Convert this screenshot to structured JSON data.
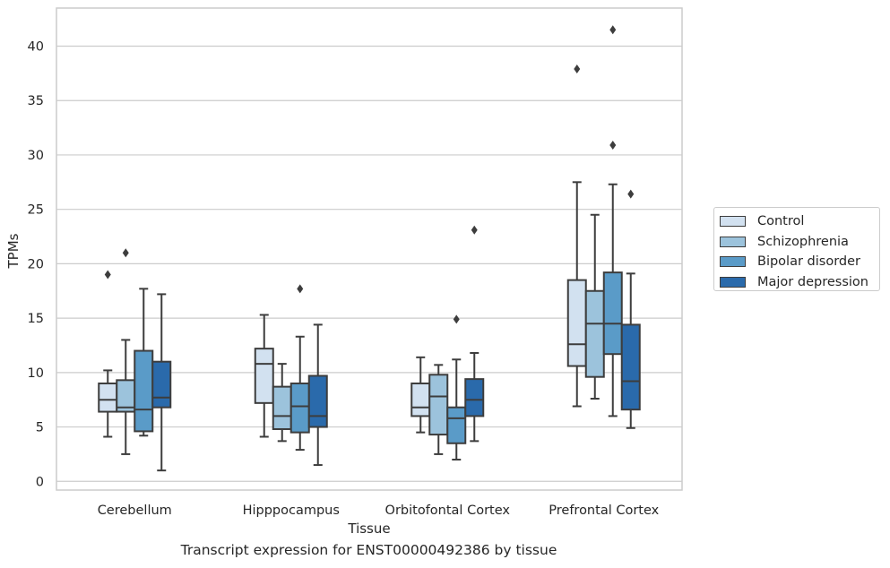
{
  "chart_data": {
    "type": "box",
    "title": "Transcript expression for ENST00000492386 by tissue",
    "xlabel": "Tissue",
    "ylabel": "TPMs",
    "ylim": [
      -0.8,
      43.5
    ],
    "yticks": [
      0,
      5,
      10,
      15,
      20,
      25,
      30,
      35,
      40
    ],
    "grid": "horizontal",
    "legend_position": "right",
    "categories": [
      "Cerebellum",
      "Hipppocampus",
      "Orbitofontal Cortex",
      "Prefrontal Cortex"
    ],
    "series": [
      {
        "name": "Control",
        "color": "#d2e1f0",
        "boxes": [
          {
            "whislo": 4.1,
            "q1": 6.4,
            "med": 7.5,
            "q3": 9.0,
            "whishi": 10.2,
            "fliers": [
              19.0
            ]
          },
          {
            "whislo": 4.1,
            "q1": 7.2,
            "med": 10.8,
            "q3": 12.2,
            "whishi": 15.3,
            "fliers": []
          },
          {
            "whislo": 4.5,
            "q1": 6.0,
            "med": 6.8,
            "q3": 9.0,
            "whishi": 11.4,
            "fliers": []
          },
          {
            "whislo": 6.9,
            "q1": 10.6,
            "med": 12.6,
            "q3": 18.5,
            "whishi": 27.5,
            "fliers": [
              37.9
            ]
          }
        ]
      },
      {
        "name": "Schizophrenia",
        "color": "#9cc3dc",
        "boxes": [
          {
            "whislo": 2.5,
            "q1": 6.4,
            "med": 6.8,
            "q3": 9.3,
            "whishi": 13.0,
            "fliers": [
              21.0
            ]
          },
          {
            "whislo": 3.7,
            "q1": 4.8,
            "med": 6.0,
            "q3": 8.7,
            "whishi": 10.8,
            "fliers": []
          },
          {
            "whislo": 2.5,
            "q1": 4.3,
            "med": 7.8,
            "q3": 9.8,
            "whishi": 10.7,
            "fliers": []
          },
          {
            "whislo": 7.6,
            "q1": 9.6,
            "med": 14.5,
            "q3": 17.5,
            "whishi": 24.5,
            "fliers": []
          }
        ]
      },
      {
        "name": "Bipolar disorder",
        "color": "#5a9bc8",
        "boxes": [
          {
            "whislo": 4.2,
            "q1": 4.6,
            "med": 6.6,
            "q3": 12.0,
            "whishi": 17.7,
            "fliers": []
          },
          {
            "whislo": 2.9,
            "q1": 4.5,
            "med": 6.9,
            "q3": 9.0,
            "whishi": 13.3,
            "fliers": [
              17.7
            ]
          },
          {
            "whislo": 2.0,
            "q1": 3.5,
            "med": 5.8,
            "q3": 6.8,
            "whishi": 11.2,
            "fliers": [
              14.9
            ]
          },
          {
            "whislo": 6.0,
            "q1": 11.7,
            "med": 14.5,
            "q3": 19.2,
            "whishi": 27.3,
            "fliers": [
              30.9,
              41.5
            ]
          }
        ]
      },
      {
        "name": "Major depression",
        "color": "#2a6aab",
        "boxes": [
          {
            "whislo": 1.0,
            "q1": 6.8,
            "med": 7.7,
            "q3": 11.0,
            "whishi": 17.2,
            "fliers": []
          },
          {
            "whislo": 1.5,
            "q1": 5.0,
            "med": 6.0,
            "q3": 9.7,
            "whishi": 14.4,
            "fliers": []
          },
          {
            "whislo": 3.7,
            "q1": 6.0,
            "med": 7.5,
            "q3": 9.4,
            "whishi": 11.8,
            "fliers": [
              23.1
            ]
          },
          {
            "whislo": 4.9,
            "q1": 6.6,
            "med": 9.2,
            "q3": 14.4,
            "whishi": 19.1,
            "fliers": [
              26.4
            ]
          }
        ]
      }
    ]
  }
}
